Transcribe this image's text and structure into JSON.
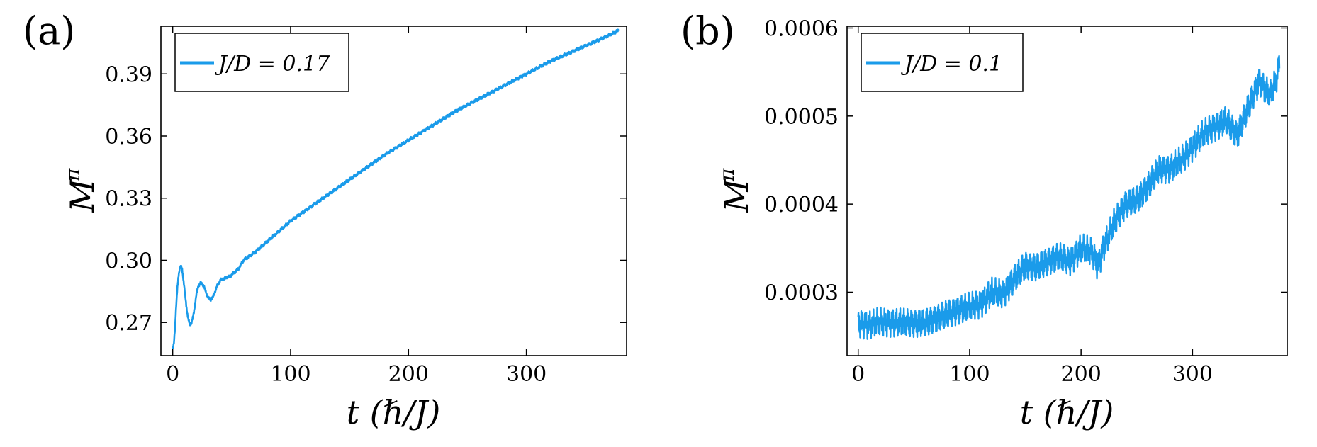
{
  "panels": [
    {
      "label": "(a)"
    },
    {
      "label": "(b)"
    }
  ],
  "chart_data": [
    {
      "type": "line",
      "panel_label": "(a)",
      "xlabel": "t (ℏ/J)",
      "ylabel": "M^π",
      "ylabel_main": "M",
      "ylabel_sup": "π",
      "xlim": [
        -10,
        385
      ],
      "ylim": [
        0.254,
        0.413
      ],
      "xticks": [
        0,
        100,
        200,
        300
      ],
      "xtick_labels": [
        "0",
        "100",
        "200",
        "300"
      ],
      "yticks": [
        0.27,
        0.3,
        0.33,
        0.36,
        0.39
      ],
      "ytick_labels": [
        "0.27",
        "0.30",
        "0.33",
        "0.36",
        "0.39"
      ],
      "grid": false,
      "legend_position": "top-left",
      "color": "#1a9bea",
      "series": [
        {
          "name": "J/D = 0.17",
          "noise_amplitude": 0.0008,
          "x": [
            0,
            1,
            2,
            3,
            4,
            5,
            6,
            7,
            8,
            9,
            10,
            11,
            12,
            13,
            14,
            15,
            16,
            17,
            18,
            19,
            20,
            21,
            22,
            24,
            26,
            28,
            30,
            32,
            34,
            36,
            38,
            40,
            42,
            44,
            46,
            48,
            50,
            52,
            54,
            56,
            58,
            60,
            65,
            70,
            80,
            90,
            100,
            120,
            140,
            160,
            180,
            200,
            220,
            240,
            260,
            280,
            300,
            320,
            340,
            360,
            375,
            378
          ],
          "y": [
            0.257,
            0.26,
            0.268,
            0.278,
            0.287,
            0.293,
            0.296,
            0.297,
            0.296,
            0.291,
            0.286,
            0.281,
            0.276,
            0.272,
            0.27,
            0.269,
            0.27,
            0.272,
            0.275,
            0.279,
            0.283,
            0.286,
            0.288,
            0.289,
            0.288,
            0.285,
            0.282,
            0.281,
            0.282,
            0.285,
            0.288,
            0.29,
            0.291,
            0.291,
            0.292,
            0.292,
            0.293,
            0.294,
            0.295,
            0.296,
            0.298,
            0.3,
            0.302,
            0.304,
            0.309,
            0.314,
            0.319,
            0.327,
            0.335,
            0.343,
            0.351,
            0.358,
            0.365,
            0.372,
            0.378,
            0.384,
            0.39,
            0.396,
            0.401,
            0.406,
            0.41,
            0.411
          ]
        }
      ]
    },
    {
      "type": "line",
      "panel_label": "(b)",
      "xlabel": "t (ℏ/J)",
      "ylabel": "M^π",
      "ylabel_main": "M",
      "ylabel_sup": "π",
      "xlim": [
        -10,
        385
      ],
      "ylim": [
        0.000228,
        0.000602
      ],
      "xticks": [
        0,
        100,
        200,
        300
      ],
      "xtick_labels": [
        "0",
        "100",
        "200",
        "300"
      ],
      "yticks": [
        0.0003,
        0.0004,
        0.0005,
        0.0006
      ],
      "ytick_labels": [
        "0.0003",
        "0.0004",
        "0.0005",
        "0.0006"
      ],
      "grid": false,
      "legend_position": "top-left",
      "color": "#1a9bea",
      "series": [
        {
          "name": "J/D = 0.1",
          "noise_amplitude": 1.7e-05,
          "x": [
            0,
            10,
            20,
            30,
            40,
            50,
            60,
            70,
            80,
            90,
            100,
            110,
            120,
            130,
            140,
            150,
            160,
            170,
            180,
            190,
            200,
            210,
            215,
            220,
            230,
            240,
            250,
            260,
            270,
            280,
            290,
            300,
            310,
            320,
            330,
            340,
            350,
            360,
            365,
            370,
            375,
            378
          ],
          "y": [
            0.000265,
            0.000263,
            0.000266,
            0.000266,
            0.000265,
            0.000265,
            0.000265,
            0.00027,
            0.000275,
            0.00028,
            0.000283,
            0.000287,
            0.0003,
            0.000298,
            0.000315,
            0.00033,
            0.000328,
            0.000335,
            0.00034,
            0.000335,
            0.00035,
            0.000345,
            0.00033,
            0.00035,
            0.00038,
            0.0004,
            0.000405,
            0.00042,
            0.00044,
            0.00044,
            0.00045,
            0.000465,
            0.00048,
            0.000488,
            0.000495,
            0.000478,
            0.00051,
            0.00054,
            0.00053,
            0.000525,
            0.00054,
            0.00056
          ]
        }
      ]
    }
  ]
}
